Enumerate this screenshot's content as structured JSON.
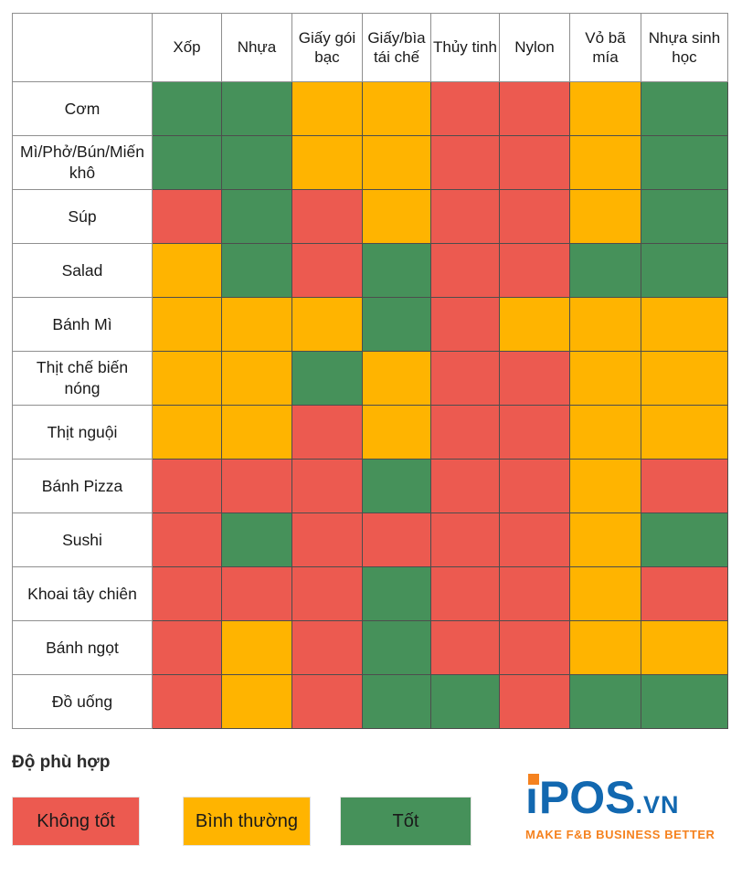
{
  "chart_data": {
    "type": "heatmap",
    "columns": [
      "Xốp",
      "Nhựa",
      "Giấy gói bạc",
      "Giấy/bìa tái chế",
      "Thủy tinh",
      "Nylon",
      "Vỏ bã mía",
      "Nhựa sinh học"
    ],
    "rows": [
      {
        "label": "Cơm",
        "values": [
          "good",
          "good",
          "normal",
          "normal",
          "bad",
          "bad",
          "normal",
          "good"
        ]
      },
      {
        "label": "Mì/Phở/Bún/Miến khô",
        "values": [
          "good",
          "good",
          "normal",
          "normal",
          "bad",
          "bad",
          "normal",
          "good"
        ]
      },
      {
        "label": "Súp",
        "values": [
          "bad",
          "good",
          "bad",
          "normal",
          "bad",
          "bad",
          "normal",
          "good"
        ]
      },
      {
        "label": "Salad",
        "values": [
          "normal",
          "good",
          "bad",
          "good",
          "bad",
          "bad",
          "good",
          "good"
        ]
      },
      {
        "label": "Bánh Mì",
        "values": [
          "normal",
          "normal",
          "normal",
          "good",
          "bad",
          "normal",
          "normal",
          "normal"
        ]
      },
      {
        "label": "Thịt chế biến nóng",
        "values": [
          "normal",
          "normal",
          "good",
          "normal",
          "bad",
          "bad",
          "normal",
          "normal"
        ]
      },
      {
        "label": "Thịt nguội",
        "values": [
          "normal",
          "normal",
          "bad",
          "normal",
          "bad",
          "bad",
          "normal",
          "normal"
        ]
      },
      {
        "label": "Bánh Pizza",
        "values": [
          "bad",
          "bad",
          "bad",
          "good",
          "bad",
          "bad",
          "normal",
          "bad"
        ]
      },
      {
        "label": "Sushi",
        "values": [
          "bad",
          "good",
          "bad",
          "bad",
          "bad",
          "bad",
          "normal",
          "good"
        ]
      },
      {
        "label": "Khoai tây chiên",
        "values": [
          "bad",
          "bad",
          "bad",
          "good",
          "bad",
          "bad",
          "normal",
          "bad"
        ]
      },
      {
        "label": "Bánh ngọt",
        "values": [
          "bad",
          "normal",
          "bad",
          "good",
          "bad",
          "bad",
          "normal",
          "normal"
        ]
      },
      {
        "label": "Đồ uống",
        "values": [
          "bad",
          "normal",
          "bad",
          "good",
          "good",
          "bad",
          "good",
          "good"
        ]
      }
    ],
    "legend": {
      "title": "Độ phù hợp",
      "entries": [
        {
          "key": "bad",
          "label": "Không tốt",
          "color": "#EC5A50"
        },
        {
          "key": "normal",
          "label": "Bình thường",
          "color": "#FFB400"
        },
        {
          "key": "good",
          "label": "Tốt",
          "color": "#46915A"
        }
      ],
      "position": "bottom-left"
    }
  },
  "logo": {
    "name": "iPOS",
    "domain": ".vn",
    "tagline": "MAKE F&B BUSINESS BETTER",
    "blue": "#1268B0",
    "orange": "#F5821F"
  }
}
